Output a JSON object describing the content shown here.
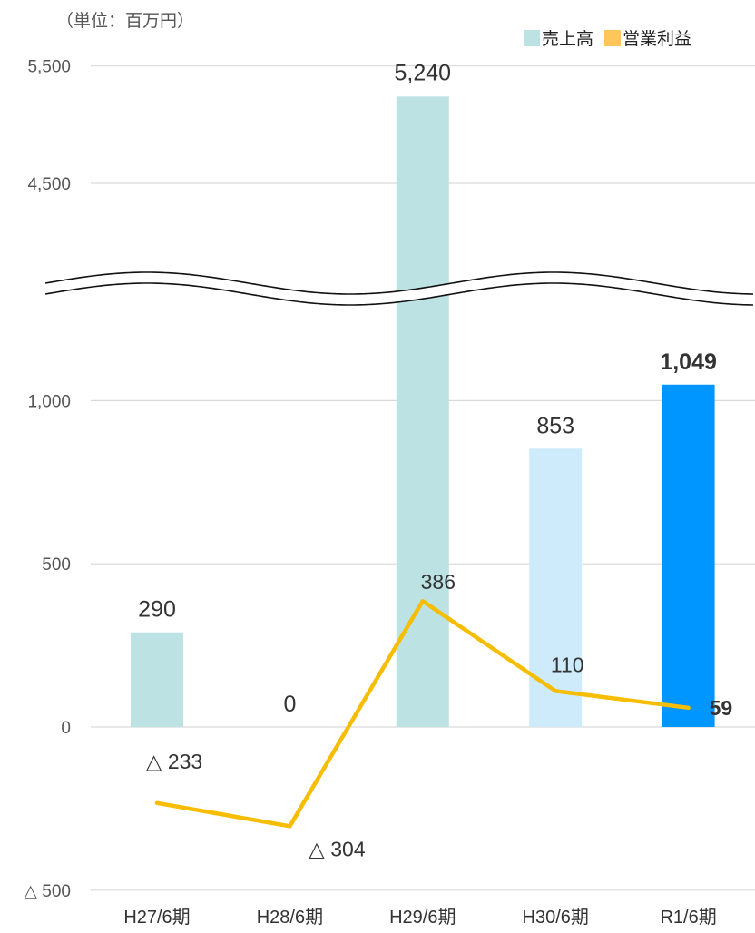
{
  "unit_label": "（単位：百万円）",
  "colors": {
    "sales_default": "#BCE2E4",
    "sales_h30": "#CDEBFB",
    "sales_r1": "#0096FF",
    "profit_line": "#F6BD02",
    "legend_profit": "#FFC65A",
    "grid": "#D9D9D9"
  },
  "chart_data": {
    "type": "bar",
    "axis_break": {
      "lower_max": 1400,
      "upper_min": 4200
    },
    "categories": [
      "H27/6期",
      "H28/6期",
      "H29/6期",
      "H30/6期",
      "R1/6期"
    ],
    "yticks": [
      -500,
      0,
      500,
      1000,
      4500,
      5500
    ],
    "ytick_labels": [
      "△ 500",
      "0",
      "500",
      "1,000",
      "4,500",
      "5,500"
    ],
    "legend": [
      "売上高",
      "営業利益"
    ],
    "legend_position": "top-right",
    "grid": true,
    "series": [
      {
        "name": "売上高",
        "type": "bar",
        "values": [
          290,
          0,
          5240,
          853,
          1049
        ],
        "labels": [
          "290",
          "0",
          "5,240",
          "853",
          "1,049"
        ]
      },
      {
        "name": "営業利益",
        "type": "line",
        "values": [
          -233,
          -304,
          386,
          110,
          59
        ],
        "labels": [
          "△ 233",
          "△ 304",
          "386",
          "110",
          "59"
        ]
      }
    ]
  }
}
